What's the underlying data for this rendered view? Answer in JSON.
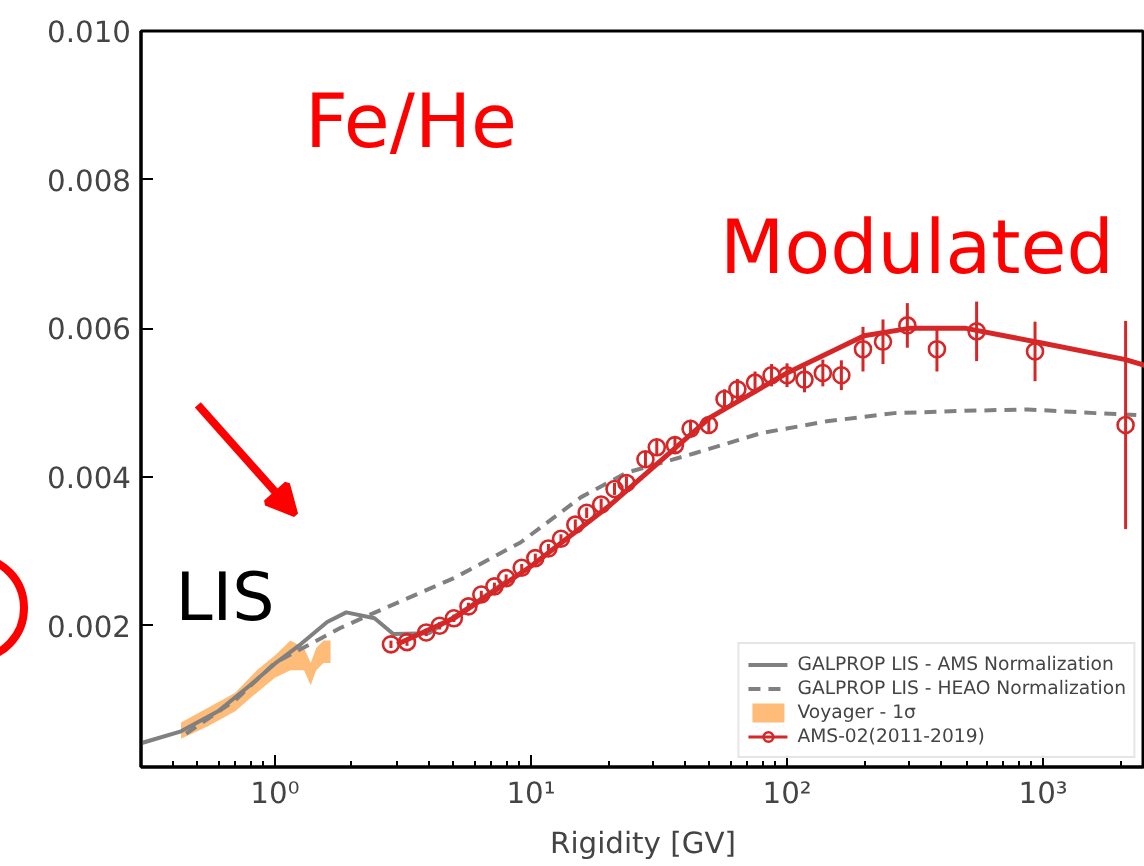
{
  "chart_data": {
    "type": "line",
    "xlabel": "Rigidity [GV]",
    "log": "x",
    "xlim": [
      0.3,
      2500
    ],
    "ylim": [
      0.0001,
      0.01
    ],
    "xticks": [
      {
        "value": 1,
        "label": "10⁰"
      },
      {
        "value": 10,
        "label": "10¹"
      },
      {
        "value": 100,
        "label": "10²"
      },
      {
        "value": 1000,
        "label": "10³"
      }
    ],
    "yticks": [
      0.002,
      0.004,
      0.006,
      0.008,
      {
        "value": 0.01,
        "label": "0.010"
      }
    ],
    "grid": false,
    "legend": "bottom right",
    "annotations": [
      "Fe/He",
      "Modulated",
      "LIS"
    ],
    "series": [
      {
        "name": "GALPROP LIS - AMS Normalization",
        "line_style": "solid",
        "color": "#808080",
        "x": [
          0.3,
          0.43,
          0.6,
          0.8,
          1.0,
          1.26,
          1.6,
          1.9,
          2.45,
          2.9,
          4,
          6,
          8
        ],
        "values": [
          0.00042,
          0.00058,
          0.00085,
          0.0012,
          0.00149,
          0.00175,
          0.00205,
          0.00218,
          0.0021,
          0.00189,
          0.0019,
          0.0023,
          0.0026
        ]
      },
      {
        "name": "GALPROP LIS - HEAO Normalization",
        "line_style": "dashed",
        "color": "#808080",
        "x": [
          0.45,
          0.7,
          1.0,
          1.8,
          2.7,
          5,
          9.1,
          15.7,
          23.7,
          43.6,
          79,
          143,
          263,
          480,
          870,
          1600,
          2500
        ],
        "values": [
          0.00055,
          0.001,
          0.0015,
          0.00197,
          0.00224,
          0.00264,
          0.00312,
          0.00373,
          0.00406,
          0.00432,
          0.00459,
          0.00475,
          0.00486,
          0.00489,
          0.00491,
          0.00486,
          0.00483
        ]
      },
      {
        "name": "Voyager - 1σ",
        "type": "area",
        "color": "#ffbb78",
        "x": [
          0.43,
          0.55,
          0.7,
          0.85,
          1.0,
          1.15,
          1.3,
          1.38,
          1.45,
          1.55,
          1.65
        ],
        "values": [
          null,
          null,
          null,
          null,
          null,
          null,
          null,
          null,
          null,
          null,
          null
        ],
        "lower": [
          0.00048,
          0.00065,
          0.00085,
          0.0011,
          0.0013,
          0.0014,
          0.0014,
          0.0012,
          0.0014,
          0.0015,
          0.0015
        ],
        "upper": [
          0.0007,
          0.0009,
          0.0011,
          0.0014,
          0.0016,
          0.0018,
          0.0017,
          0.0015,
          0.0017,
          0.0018,
          0.0018
        ]
      },
      {
        "line_style": "solid",
        "color": "#d62728",
        "x": [
          3,
          5,
          10,
          20,
          50,
          100,
          200,
          300,
          500,
          1000,
          2100,
          2500
        ],
        "values": [
          0.00175,
          0.0021,
          0.0028,
          0.0036,
          0.0048,
          0.0054,
          0.0059,
          0.006,
          0.006,
          0.0058,
          0.00558,
          0.0055
        ]
      },
      {
        "name": "AMS-02(2011-2019)",
        "type": "scatter",
        "marker": "circle",
        "color": "#d62728",
        "x": [
          2.84,
          3.28,
          3.9,
          4.4,
          5.0,
          5.7,
          6.4,
          7.2,
          8.0,
          9.2,
          10.4,
          11.7,
          13.1,
          14.9,
          16.5,
          18.8,
          21.2,
          23.6,
          28,
          31,
          36.5,
          42,
          49.5,
          57,
          64,
          75,
          87,
          100,
          117,
          138,
          163,
          198,
          237,
          295,
          385,
          550,
          930,
          2100
        ],
        "values": [
          0.00175,
          0.00178,
          0.00191,
          0.002,
          0.0021,
          0.00226,
          0.00242,
          0.00253,
          0.00264,
          0.00278,
          0.00291,
          0.00304,
          0.00317,
          0.00336,
          0.00352,
          0.00363,
          0.00384,
          0.00392,
          0.00424,
          0.0044,
          0.00443,
          0.00465,
          0.0047,
          0.00505,
          0.00518,
          0.00527,
          0.00537,
          0.00537,
          0.00531,
          0.0054,
          0.00537,
          0.00572,
          0.00582,
          0.00604,
          0.00572,
          0.00596,
          0.00569,
          0.0047
        ],
        "errors": [
          5e-05,
          5e-05,
          5e-05,
          5e-05,
          5e-05,
          5e-05,
          5e-05,
          5e-05,
          5e-05,
          5e-05,
          6e-05,
          6e-05,
          6e-05,
          7e-05,
          7e-05,
          8e-05,
          8e-05,
          9e-05,
          0.0001,
          0.0001,
          0.0001,
          0.00012,
          0.00012,
          0.00013,
          0.00014,
          0.00015,
          0.00015,
          0.00016,
          0.00017,
          0.00018,
          0.0002,
          0.0003,
          0.0003,
          0.0003,
          0.0003,
          0.0004,
          0.0004,
          0.0014
        ]
      }
    ]
  }
}
